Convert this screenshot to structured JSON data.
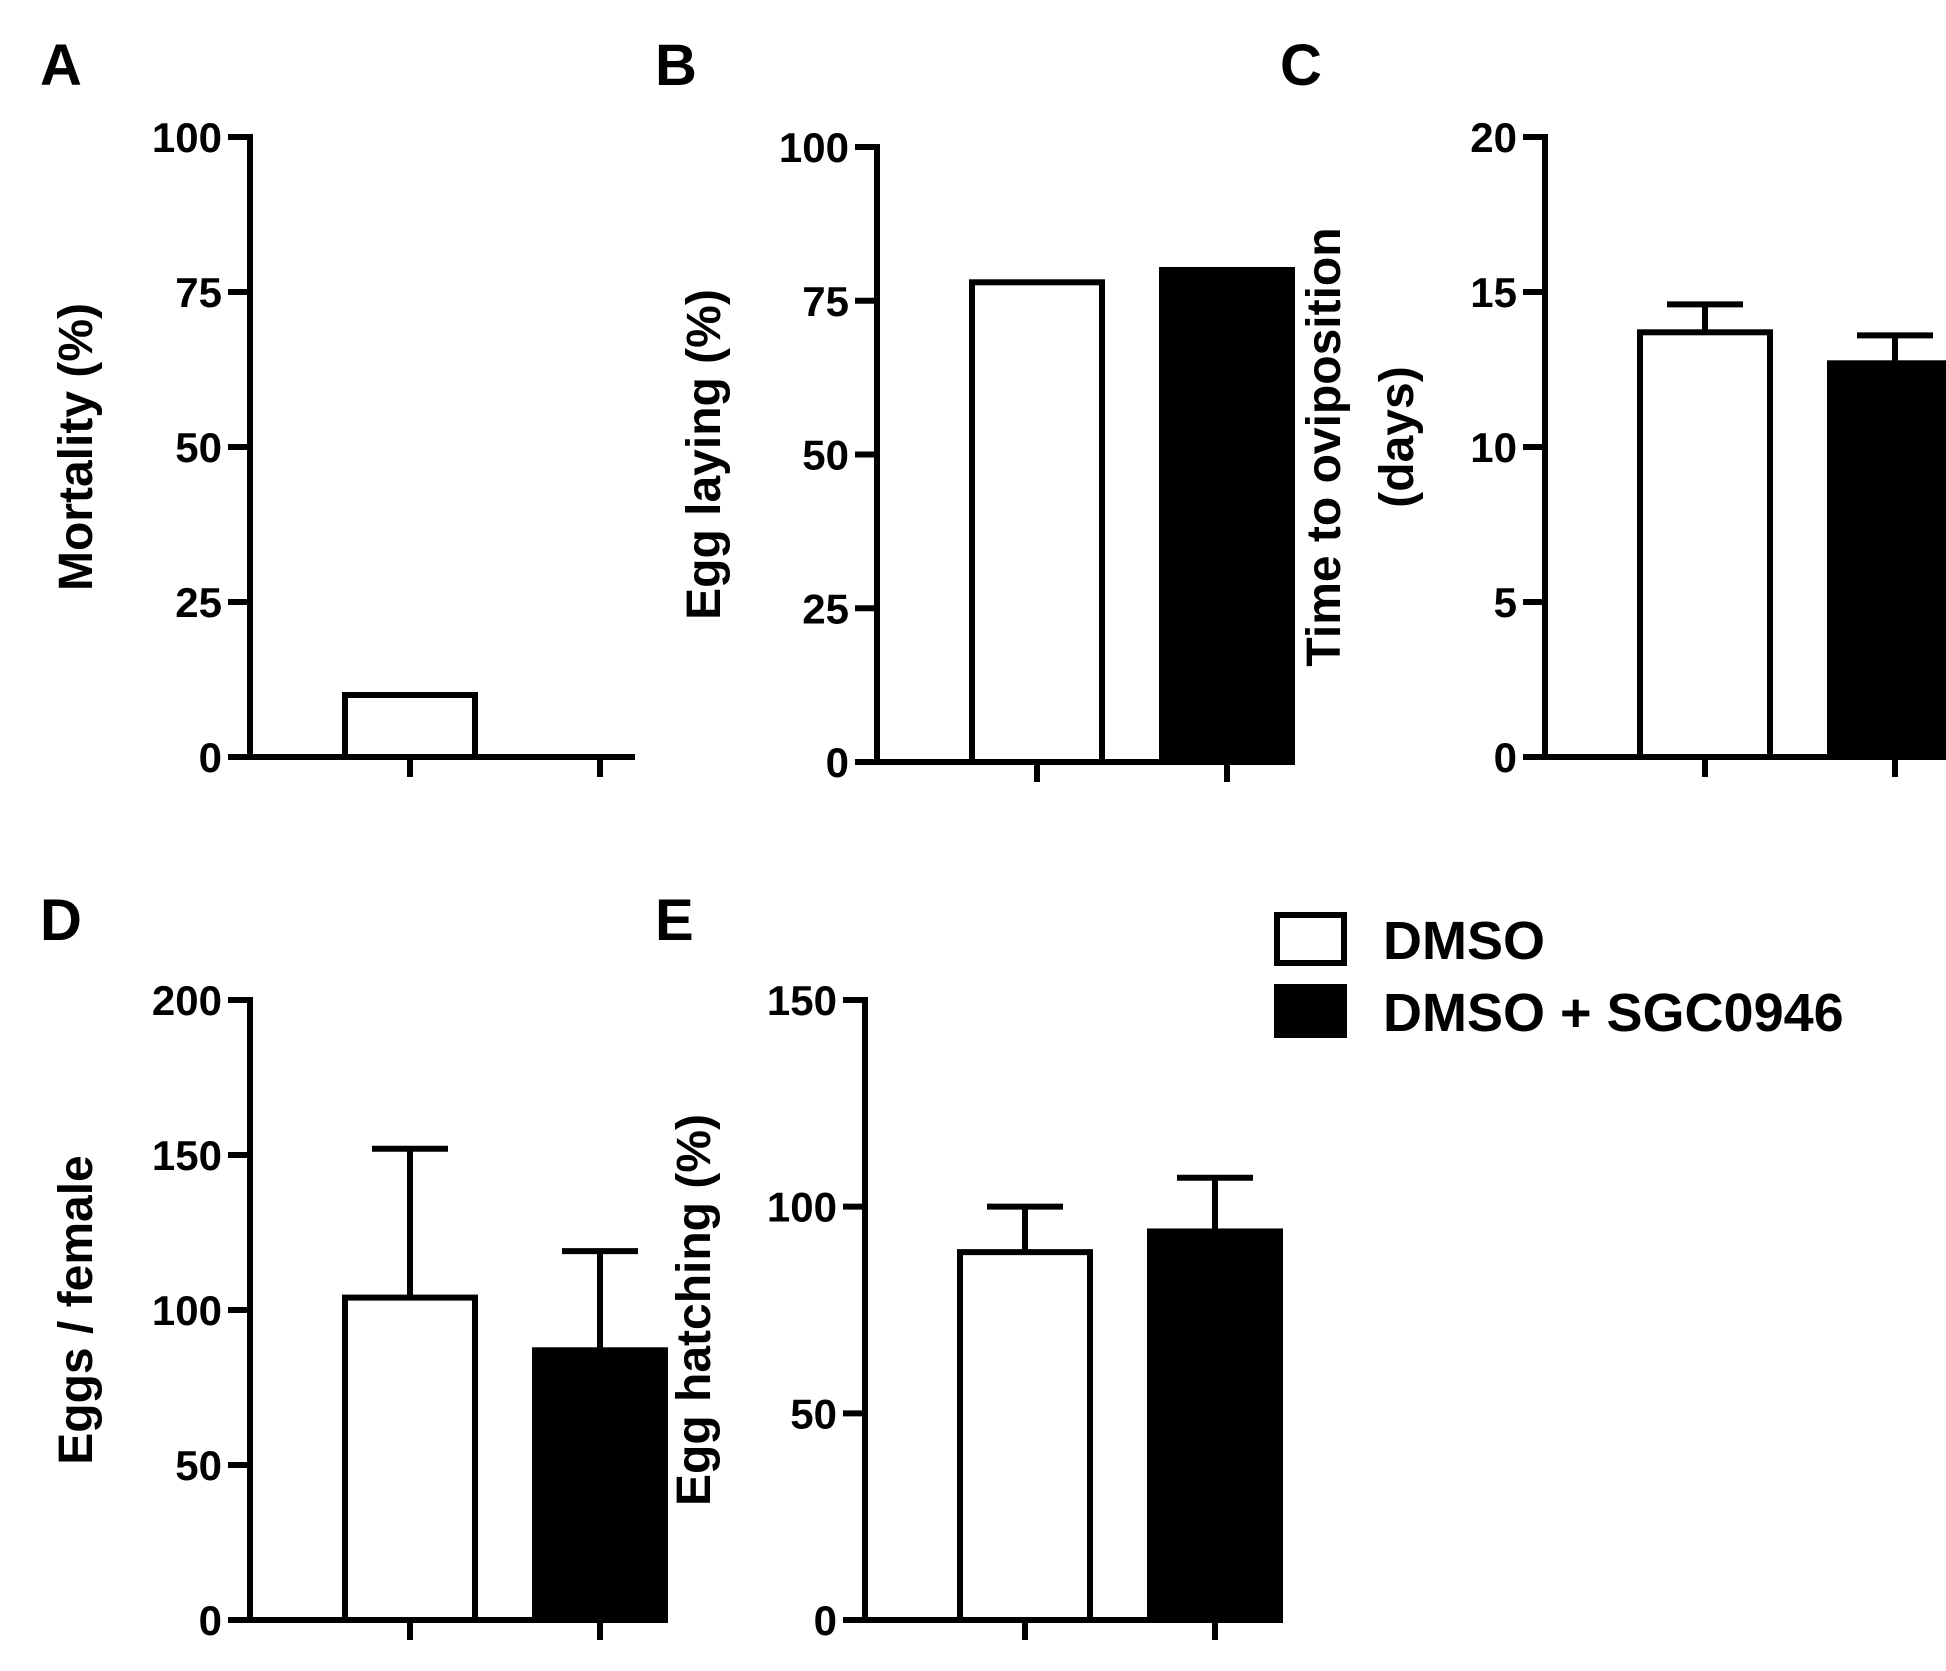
{
  "figure": {
    "colors": {
      "series_0_fill": "#ffffff",
      "series_1_fill": "#000000",
      "stroke": "#000000"
    },
    "legend": {
      "items": [
        {
          "label": "DMSO",
          "fill": "#ffffff"
        },
        {
          "label": "DMSO + SGC0946",
          "fill": "#000000"
        }
      ]
    }
  },
  "chart_data": [
    {
      "panel": "A",
      "type": "bar",
      "ylabel": [
        "Mortality (%)"
      ],
      "ylim": [
        0,
        100
      ],
      "yticks": [
        0,
        25,
        50,
        75,
        100
      ],
      "series": [
        {
          "name": "DMSO",
          "value": 10,
          "error": null
        },
        {
          "name": "DMSO + SGC0946",
          "value": 0,
          "error": null
        }
      ]
    },
    {
      "panel": "B",
      "type": "bar",
      "ylabel": [
        "Egg laying (%)"
      ],
      "ylim": [
        0,
        100
      ],
      "yticks": [
        0,
        25,
        50,
        75,
        100
      ],
      "series": [
        {
          "name": "DMSO",
          "value": 78,
          "error": null
        },
        {
          "name": "DMSO + SGC0946",
          "value": 80,
          "error": null
        }
      ]
    },
    {
      "panel": "C",
      "type": "bar",
      "ylabel": [
        "Time to oviposition",
        "(days)"
      ],
      "ylim": [
        0,
        20
      ],
      "yticks": [
        0,
        5,
        10,
        15,
        20
      ],
      "series": [
        {
          "name": "DMSO",
          "value": 13.7,
          "error": 0.9
        },
        {
          "name": "DMSO + SGC0946",
          "value": 12.7,
          "error": 0.9
        }
      ]
    },
    {
      "panel": "D",
      "type": "bar",
      "ylabel": [
        "Eggs / female"
      ],
      "ylim": [
        0,
        200
      ],
      "yticks": [
        0,
        50,
        100,
        150,
        200
      ],
      "series": [
        {
          "name": "DMSO",
          "value": 104,
          "error": 48
        },
        {
          "name": "DMSO + SGC0946",
          "value": 87,
          "error": 32
        }
      ]
    },
    {
      "panel": "E",
      "type": "bar",
      "ylabel": [
        "Egg hatching (%)"
      ],
      "ylim": [
        0,
        150
      ],
      "yticks": [
        0,
        50,
        100,
        150
      ],
      "series": [
        {
          "name": "DMSO",
          "value": 89,
          "error": 11
        },
        {
          "name": "DMSO + SGC0946",
          "value": 94,
          "error": 13
        }
      ]
    }
  ]
}
